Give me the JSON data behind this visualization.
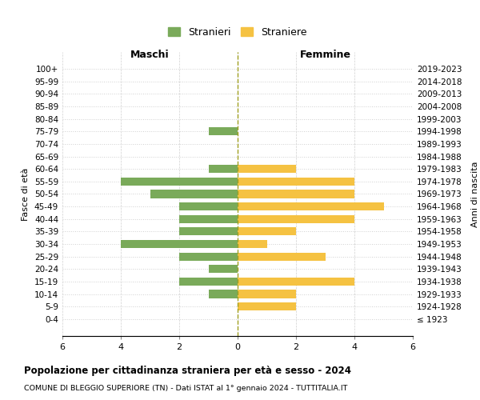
{
  "age_groups": [
    "100+",
    "95-99",
    "90-94",
    "85-89",
    "80-84",
    "75-79",
    "70-74",
    "65-69",
    "60-64",
    "55-59",
    "50-54",
    "45-49",
    "40-44",
    "35-39",
    "30-34",
    "25-29",
    "20-24",
    "15-19",
    "10-14",
    "5-9",
    "0-4"
  ],
  "birth_years": [
    "≤ 1923",
    "1924-1928",
    "1929-1933",
    "1934-1938",
    "1939-1943",
    "1944-1948",
    "1949-1953",
    "1954-1958",
    "1959-1963",
    "1964-1968",
    "1969-1973",
    "1974-1978",
    "1979-1983",
    "1984-1988",
    "1989-1993",
    "1994-1998",
    "1999-2003",
    "2004-2008",
    "2009-2013",
    "2014-2018",
    "2019-2023"
  ],
  "maschi": [
    0,
    0,
    0,
    0,
    0,
    1,
    0,
    0,
    1,
    4,
    3,
    2,
    2,
    2,
    4,
    2,
    1,
    2,
    1,
    0,
    0
  ],
  "femmine": [
    0,
    0,
    0,
    0,
    0,
    0,
    0,
    0,
    2,
    4,
    4,
    5,
    4,
    2,
    1,
    3,
    0,
    4,
    2,
    2,
    0
  ],
  "maschi_color": "#7aaa5a",
  "femmine_color": "#f5c242",
  "title": "Popolazione per cittadinanza straniera per età e sesso - 2024",
  "subtitle": "COMUNE DI BLEGGIO SUPERIORE (TN) - Dati ISTAT al 1° gennaio 2024 - TUTTITALIA.IT",
  "legend_maschi": "Stranieri",
  "legend_femmine": "Straniere",
  "xlabel_left": "Maschi",
  "xlabel_right": "Femmine",
  "ylabel_left": "Fasce di età",
  "ylabel_right": "Anni di nascita",
  "xlim": 6,
  "background_color": "#ffffff",
  "grid_color": "#d0d0d0"
}
